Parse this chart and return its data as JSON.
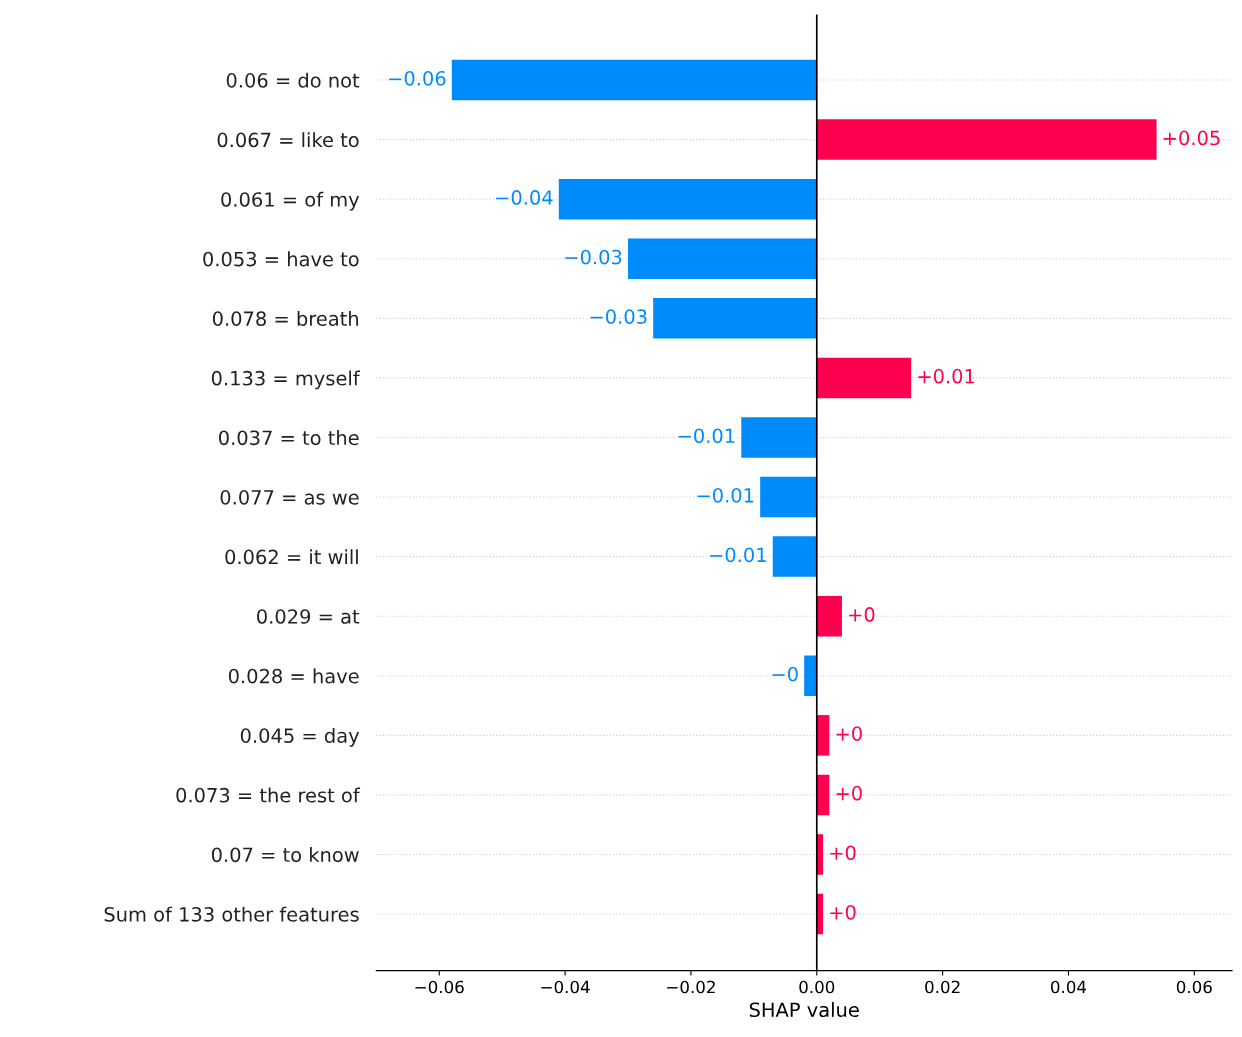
{
  "chart_data": {
    "type": "bar",
    "orientation": "horizontal",
    "xlabel": "SHAP value",
    "categories": [
      "0.06 = do not",
      "0.067 = like to",
      "0.061 = of my",
      "0.053 = have to",
      "0.078 = breath",
      "0.133 = myself",
      "0.037 = to the",
      "0.077 = as we",
      "0.062 = it will",
      "0.029 = at",
      "0.028 = have",
      "0.045 = day",
      "0.073 = the rest of",
      "0.07 = to know",
      "Sum of 133 other features"
    ],
    "values": [
      -0.058,
      0.054,
      -0.041,
      -0.03,
      -0.026,
      0.015,
      -0.012,
      -0.009,
      -0.007,
      0.004,
      -0.002,
      0.002,
      0.002,
      0.001,
      0.001
    ],
    "colors": [
      "#008bfb",
      "#ff0051",
      "#008bfb",
      "#008bfb",
      "#008bfb",
      "#ff0051",
      "#008bfb",
      "#008bfb",
      "#008bfb",
      "#ff0051",
      "#008bfb",
      "#ff0051",
      "#ff0051",
      "#ff0051",
      "#ff0051"
    ],
    "value_labels": [
      "−0.06",
      "+0.05",
      "−0.04",
      "−0.03",
      "−0.03",
      "+0.01",
      "−0.01",
      "−0.01",
      "−0.01",
      "+0",
      "−0",
      "+0",
      "+0",
      "+0",
      "+0"
    ],
    "xlim": [
      -0.07,
      0.066
    ],
    "xticks": [
      {
        "value": -0.06,
        "label": "−0.06"
      },
      {
        "value": -0.04,
        "label": "−0.04"
      },
      {
        "value": -0.02,
        "label": "−0.02"
      },
      {
        "value": 0,
        "label": "0.00"
      },
      {
        "value": 0.02,
        "label": "0.02"
      },
      {
        "value": 0.04,
        "label": "0.04"
      },
      {
        "value": 0.06,
        "label": "0.06"
      }
    ],
    "ref_lines": [
      {
        "axis": "x",
        "value": 0,
        "color": "#000000"
      }
    ],
    "grid": "y"
  }
}
